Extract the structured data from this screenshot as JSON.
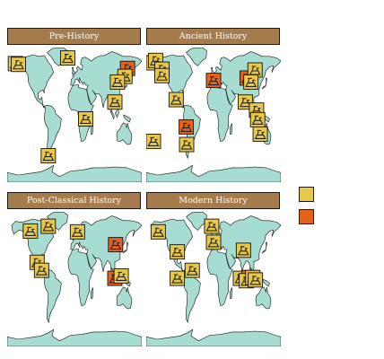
{
  "colors": {
    "header_bg": "#a77c4c",
    "land": "#a6dcd2",
    "outline": "#111111",
    "marker_yellow": "#e8c84a",
    "marker_orange": "#e2641c"
  },
  "panels": [
    {
      "title": "Pre-History",
      "markers": [
        {
          "lon": -158,
          "lat": 63,
          "color": "yellow"
        },
        {
          "lon": -150,
          "lat": 62,
          "color": "yellow"
        },
        {
          "lon": -18,
          "lat": 70,
          "color": "yellow"
        },
        {
          "lon": 142,
          "lat": 57,
          "color": "orange"
        },
        {
          "lon": 135,
          "lat": 47,
          "color": "yellow"
        },
        {
          "lon": 115,
          "lat": 40,
          "color": "yellow"
        },
        {
          "lon": 108,
          "lat": 15,
          "color": "yellow"
        },
        {
          "lon": 30,
          "lat": -6,
          "color": "yellow"
        },
        {
          "lon": -70,
          "lat": -52,
          "color": "yellow"
        }
      ]
    },
    {
      "title": "Ancient History",
      "markers": [
        {
          "lon": -166,
          "lat": 64,
          "color": "yellow"
        },
        {
          "lon": -155,
          "lat": 67,
          "color": "yellow"
        },
        {
          "lon": -138,
          "lat": 56,
          "color": "yellow"
        },
        {
          "lon": -138,
          "lat": 48,
          "color": "yellow"
        },
        {
          "lon": -100,
          "lat": 18,
          "color": "yellow"
        },
        {
          "lon": 0,
          "lat": 42,
          "color": "orange"
        },
        {
          "lon": 90,
          "lat": 45,
          "color": "orange"
        },
        {
          "lon": 111,
          "lat": 55,
          "color": "yellow"
        },
        {
          "lon": 100,
          "lat": 40,
          "color": "yellow"
        },
        {
          "lon": 85,
          "lat": 15,
          "color": "yellow"
        },
        {
          "lon": 115,
          "lat": 5,
          "color": "yellow"
        },
        {
          "lon": 118,
          "lat": -7,
          "color": "yellow"
        },
        {
          "lon": 125,
          "lat": -25,
          "color": "yellow"
        },
        {
          "lon": -73,
          "lat": -16,
          "color": "orange"
        },
        {
          "lon": -175,
          "lat": -34,
          "color": "yellow"
        },
        {
          "lon": -72,
          "lat": -38,
          "color": "yellow"
        }
      ]
    },
    {
      "title": "Post-Classical History",
      "markers": [
        {
          "lon": -118,
          "lat": 59,
          "color": "yellow"
        },
        {
          "lon": -70,
          "lat": 65,
          "color": "yellow"
        },
        {
          "lon": 8,
          "lat": 58,
          "color": "yellow"
        },
        {
          "lon": 110,
          "lat": 42,
          "color": "orange"
        },
        {
          "lon": -100,
          "lat": 20,
          "color": "yellow"
        },
        {
          "lon": -88,
          "lat": 10,
          "color": "yellow"
        },
        {
          "lon": 108,
          "lat": 0,
          "color": "orange"
        },
        {
          "lon": 125,
          "lat": 3,
          "color": "yellow"
        }
      ]
    },
    {
      "title": "Modern History",
      "markers": [
        {
          "lon": -148,
          "lat": 58,
          "color": "yellow"
        },
        {
          "lon": -5,
          "lat": 65,
          "color": "yellow"
        },
        {
          "lon": 0,
          "lat": 45,
          "color": "yellow"
        },
        {
          "lon": -97,
          "lat": 33,
          "color": "yellow"
        },
        {
          "lon": -57,
          "lat": 10,
          "color": "yellow"
        },
        {
          "lon": -97,
          "lat": 0,
          "color": "yellow"
        },
        {
          "lon": 80,
          "lat": 35,
          "color": "yellow"
        },
        {
          "lon": 72,
          "lat": 0,
          "color": "yellow"
        },
        {
          "lon": 95,
          "lat": 1,
          "color": "orange"
        },
        {
          "lon": 88,
          "lat": -3,
          "color": "yellow"
        },
        {
          "lon": 105,
          "lat": 1,
          "color": "yellow"
        },
        {
          "lon": 112,
          "lat": -2,
          "color": "yellow"
        }
      ]
    }
  ],
  "legend": [
    {
      "color": "yellow"
    },
    {
      "color": "orange"
    }
  ]
}
